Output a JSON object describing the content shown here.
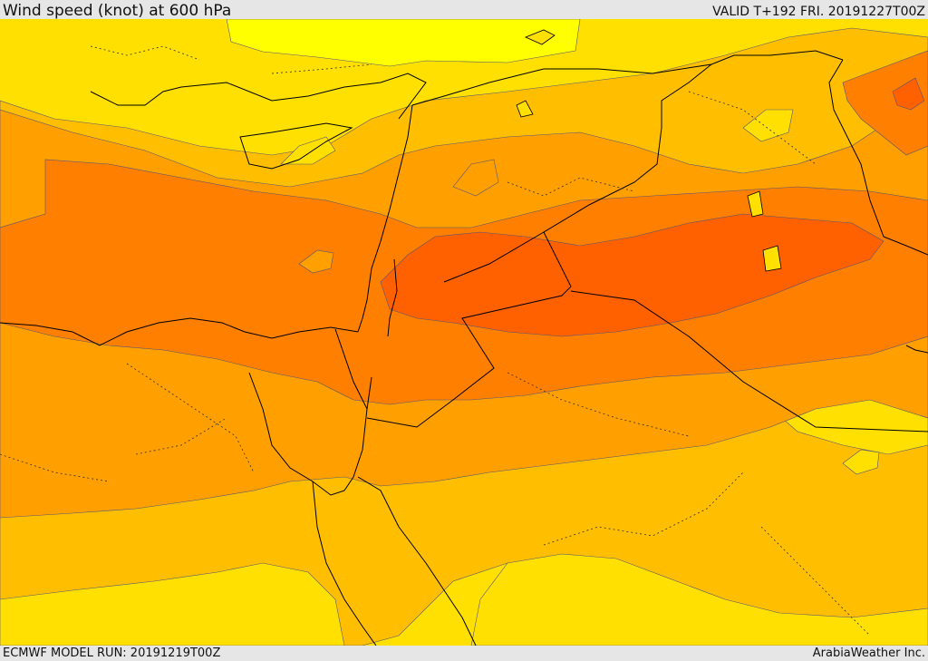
{
  "header": {
    "title": "Wind speed (knot) at 600 hPa",
    "valid": "VALID T+192 FRI. 20191227T00Z"
  },
  "footer": {
    "model_run": "ECMWF MODEL RUN: 20191219T00Z",
    "credit": "ArabiaWeather Inc."
  },
  "map": {
    "colors": {
      "band_light_yellow": "#ffff00",
      "band_yellow": "#ffe000",
      "band_amber": "#ffbf00",
      "band_orange": "#ff9f00",
      "band_dark_orange": "#ff7f00",
      "band_red_orange": "#ff6000",
      "coastline": "#000000",
      "contour": "#555577"
    }
  }
}
